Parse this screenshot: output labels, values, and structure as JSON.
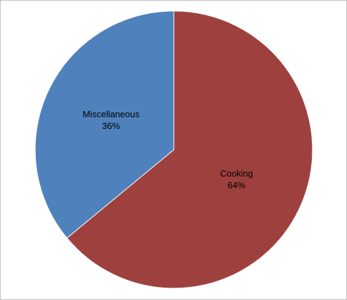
{
  "chart_data": {
    "type": "pie",
    "title": "",
    "slices": [
      {
        "label": "Cooking",
        "value": 64,
        "display": "64%",
        "color": "#9e413e"
      },
      {
        "label": "Miscellaneous",
        "value": 36,
        "display": "36%",
        "color": "#4f81bd"
      }
    ],
    "start_angle_deg": 0,
    "direction": "clockwise",
    "legend": "none"
  }
}
